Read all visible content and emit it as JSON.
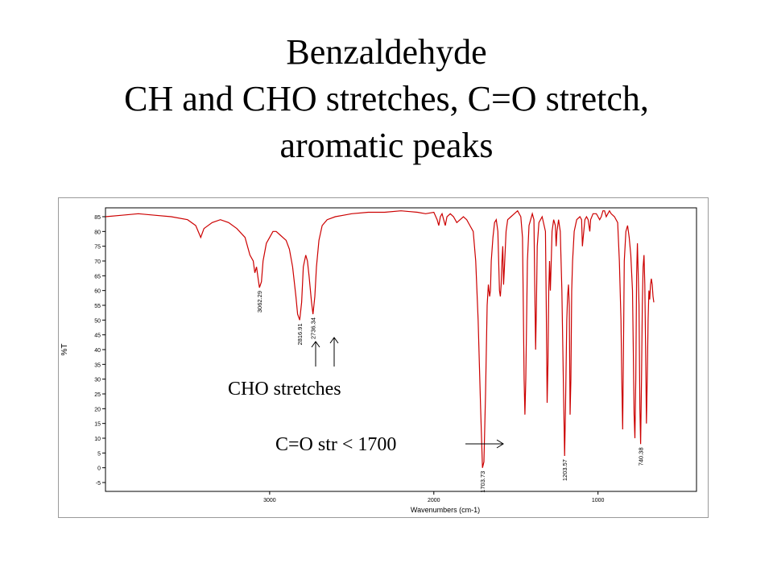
{
  "slide": {
    "title_lines": [
      "Benzaldehyde",
      "CH and CHO stretches, C=O stretch,",
      "aromatic peaks"
    ]
  },
  "annotations": {
    "cho": "CHO stretches",
    "co": "C=O str < 1700"
  },
  "colors": {
    "spectrum": "#cc0000",
    "axis": "#000000",
    "frame": "#9a9a9a"
  },
  "chart_data": {
    "type": "line",
    "title": "",
    "xlabel": "Wavenumbers (cm-1)",
    "ylabel": "%T",
    "x_reversed": true,
    "xlim": [
      4000,
      400
    ],
    "ylim": [
      -8,
      88
    ],
    "x_ticks": [
      3000,
      2000,
      1000
    ],
    "y_ticks": [
      85,
      80,
      75,
      70,
      65,
      60,
      55,
      50,
      45,
      40,
      35,
      30,
      25,
      20,
      15,
      10,
      5,
      0,
      -5
    ],
    "grid": false,
    "peak_labels": [
      "3062.29",
      "2816.91",
      "2736.34",
      "1703.73",
      "1203.57",
      "740.38"
    ],
    "peaks": [
      {
        "x": 3062.29,
        "y": 61
      },
      {
        "x": 2816.91,
        "y": 50
      },
      {
        "x": 2736.34,
        "y": 52
      },
      {
        "x": 1703.73,
        "y": 0
      },
      {
        "x": 1203.57,
        "y": 4
      },
      {
        "x": 740.38,
        "y": 8
      }
    ],
    "series": [
      {
        "points": [
          [
            4000,
            85
          ],
          [
            3900,
            85.5
          ],
          [
            3800,
            86
          ],
          [
            3700,
            85.5
          ],
          [
            3600,
            85
          ],
          [
            3500,
            84
          ],
          [
            3450,
            82
          ],
          [
            3420,
            78
          ],
          [
            3400,
            81
          ],
          [
            3350,
            83
          ],
          [
            3300,
            84
          ],
          [
            3250,
            83
          ],
          [
            3200,
            81
          ],
          [
            3150,
            78
          ],
          [
            3120,
            72
          ],
          [
            3100,
            70
          ],
          [
            3090,
            66
          ],
          [
            3080,
            68
          ],
          [
            3070,
            64
          ],
          [
            3062,
            61
          ],
          [
            3050,
            63
          ],
          [
            3040,
            70
          ],
          [
            3020,
            76
          ],
          [
            3000,
            78
          ],
          [
            2980,
            80
          ],
          [
            2960,
            80
          ],
          [
            2940,
            79
          ],
          [
            2920,
            78
          ],
          [
            2900,
            77
          ],
          [
            2880,
            74
          ],
          [
            2860,
            68
          ],
          [
            2840,
            58
          ],
          [
            2830,
            52
          ],
          [
            2817,
            50
          ],
          [
            2805,
            56
          ],
          [
            2795,
            68
          ],
          [
            2780,
            72
          ],
          [
            2770,
            70
          ],
          [
            2760,
            65
          ],
          [
            2745,
            56
          ],
          [
            2736,
            52
          ],
          [
            2725,
            58
          ],
          [
            2715,
            68
          ],
          [
            2700,
            77
          ],
          [
            2680,
            82
          ],
          [
            2650,
            84
          ],
          [
            2600,
            85
          ],
          [
            2550,
            85.5
          ],
          [
            2500,
            86
          ],
          [
            2400,
            86.5
          ],
          [
            2300,
            86.5
          ],
          [
            2200,
            87
          ],
          [
            2100,
            86.5
          ],
          [
            2050,
            86
          ],
          [
            2000,
            86.5
          ],
          [
            1980,
            84
          ],
          [
            1970,
            82
          ],
          [
            1960,
            85
          ],
          [
            1950,
            86
          ],
          [
            1940,
            84
          ],
          [
            1930,
            82
          ],
          [
            1920,
            85
          ],
          [
            1900,
            86
          ],
          [
            1880,
            85
          ],
          [
            1860,
            83
          ],
          [
            1840,
            84
          ],
          [
            1820,
            85
          ],
          [
            1800,
            84
          ],
          [
            1780,
            82
          ],
          [
            1760,
            80
          ],
          [
            1745,
            70
          ],
          [
            1730,
            50
          ],
          [
            1715,
            20
          ],
          [
            1703.7,
            0
          ],
          [
            1695,
            2
          ],
          [
            1685,
            25
          ],
          [
            1675,
            55
          ],
          [
            1668,
            62
          ],
          [
            1660,
            58
          ],
          [
            1655,
            60
          ],
          [
            1650,
            70
          ],
          [
            1640,
            78
          ],
          [
            1630,
            83
          ],
          [
            1620,
            84
          ],
          [
            1610,
            80
          ],
          [
            1600,
            60
          ],
          [
            1595,
            58
          ],
          [
            1590,
            62
          ],
          [
            1585,
            70
          ],
          [
            1580,
            75
          ],
          [
            1575,
            62
          ],
          [
            1570,
            68
          ],
          [
            1560,
            80
          ],
          [
            1550,
            84
          ],
          [
            1530,
            85
          ],
          [
            1510,
            86
          ],
          [
            1490,
            87
          ],
          [
            1470,
            85
          ],
          [
            1460,
            78
          ],
          [
            1455,
            55
          ],
          [
            1450,
            30
          ],
          [
            1445,
            18
          ],
          [
            1440,
            30
          ],
          [
            1435,
            50
          ],
          [
            1430,
            70
          ],
          [
            1420,
            82
          ],
          [
            1400,
            86
          ],
          [
            1390,
            84
          ],
          [
            1385,
            60
          ],
          [
            1380,
            40
          ],
          [
            1375,
            55
          ],
          [
            1370,
            75
          ],
          [
            1360,
            83
          ],
          [
            1340,
            85
          ],
          [
            1320,
            80
          ],
          [
            1315,
            55
          ],
          [
            1310,
            22
          ],
          [
            1305,
            35
          ],
          [
            1300,
            60
          ],
          [
            1295,
            70
          ],
          [
            1290,
            60
          ],
          [
            1285,
            70
          ],
          [
            1280,
            80
          ],
          [
            1270,
            84
          ],
          [
            1260,
            82
          ],
          [
            1255,
            75
          ],
          [
            1250,
            80
          ],
          [
            1240,
            84
          ],
          [
            1230,
            80
          ],
          [
            1220,
            60
          ],
          [
            1210,
            25
          ],
          [
            1203.6,
            4
          ],
          [
            1198,
            20
          ],
          [
            1190,
            50
          ],
          [
            1185,
            58
          ],
          [
            1180,
            62
          ],
          [
            1175,
            55
          ],
          [
            1170,
            18
          ],
          [
            1165,
            30
          ],
          [
            1160,
            60
          ],
          [
            1155,
            70
          ],
          [
            1145,
            80
          ],
          [
            1130,
            84
          ],
          [
            1110,
            85
          ],
          [
            1100,
            84
          ],
          [
            1095,
            75
          ],
          [
            1090,
            78
          ],
          [
            1080,
            84
          ],
          [
            1070,
            85
          ],
          [
            1060,
            84
          ],
          [
            1050,
            80
          ],
          [
            1045,
            84
          ],
          [
            1030,
            86
          ],
          [
            1010,
            86
          ],
          [
            1000,
            85
          ],
          [
            990,
            84
          ],
          [
            980,
            85
          ],
          [
            970,
            87
          ],
          [
            960,
            87
          ],
          [
            950,
            85
          ],
          [
            940,
            86
          ],
          [
            930,
            87
          ],
          [
            920,
            86
          ],
          [
            900,
            85
          ],
          [
            880,
            83
          ],
          [
            870,
            70
          ],
          [
            860,
            50
          ],
          [
            855,
            30
          ],
          [
            850,
            13
          ],
          [
            845,
            40
          ],
          [
            840,
            70
          ],
          [
            830,
            80
          ],
          [
            820,
            82
          ],
          [
            810,
            78
          ],
          [
            800,
            72
          ],
          [
            790,
            60
          ],
          [
            785,
            40
          ],
          [
            780,
            18
          ],
          [
            775,
            10
          ],
          [
            770,
            30
          ],
          [
            765,
            65
          ],
          [
            760,
            76
          ],
          [
            750,
            55
          ],
          [
            745,
            20
          ],
          [
            740.4,
            8
          ],
          [
            735,
            30
          ],
          [
            730,
            55
          ],
          [
            725,
            68
          ],
          [
            720,
            72
          ],
          [
            715,
            62
          ],
          [
            710,
            40
          ],
          [
            705,
            15
          ],
          [
            700,
            30
          ],
          [
            695,
            50
          ],
          [
            690,
            60
          ],
          [
            685,
            57
          ],
          [
            680,
            62
          ],
          [
            675,
            64
          ],
          [
            670,
            62
          ],
          [
            665,
            58
          ],
          [
            660,
            56
          ]
        ]
      }
    ]
  }
}
